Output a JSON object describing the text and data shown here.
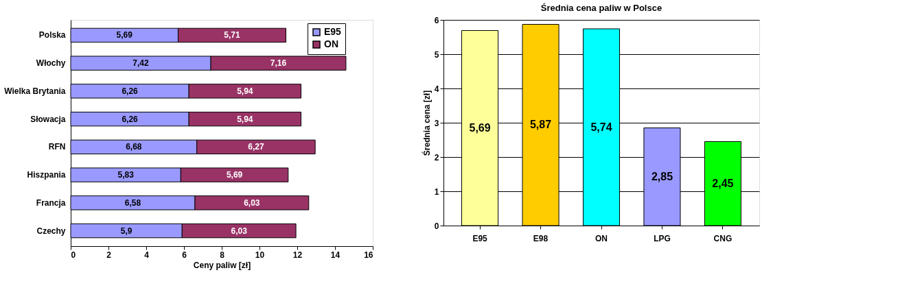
{
  "chart_data": [
    {
      "type": "bar",
      "orientation": "horizontal",
      "stacked": true,
      "xlabel": "Ceny paliw  [zł]",
      "categories": [
        "Polska",
        "Włochy",
        "Wielka Brytania",
        "Słowacja",
        "RFN",
        "Hiszpania",
        "Francja",
        "Czechy"
      ],
      "series": [
        {
          "name": "E95",
          "color": "#9999ff",
          "values": [
            5.69,
            7.42,
            6.26,
            6.26,
            6.68,
            5.83,
            6.58,
            5.9
          ],
          "value_labels": [
            "5,69",
            "7,42",
            "6,26",
            "6,26",
            "6,68",
            "5,83",
            "6,58",
            "5,9"
          ]
        },
        {
          "name": "ON",
          "color": "#993366",
          "values": [
            5.71,
            7.16,
            5.94,
            5.94,
            6.27,
            5.69,
            6.03,
            6.03
          ],
          "value_labels": [
            "5,71",
            "7,16",
            "5,94",
            "5,94",
            "6,27",
            "5,69",
            "6,03",
            "6,03"
          ]
        }
      ],
      "xlim": [
        0,
        16
      ],
      "xticks": [
        0,
        2,
        4,
        6,
        8,
        10,
        12,
        14,
        16
      ],
      "grid": false,
      "legend": "top right"
    },
    {
      "type": "bar",
      "title": "Średnia cena paliw w Polsce",
      "ylabel": "Średnia cena [zł]",
      "categories": [
        "E95",
        "E98",
        "ON",
        "LPG",
        "CNG"
      ],
      "values": [
        5.69,
        5.87,
        5.74,
        2.85,
        2.45
      ],
      "colors": [
        "#ffff99",
        "#ffcc00",
        "#00ffff",
        "#9999ff",
        "#00ff00"
      ],
      "value_labels": [
        "5,69",
        "5,87",
        "5,74",
        "2,85",
        "2,45"
      ],
      "ylim": [
        0,
        6
      ],
      "yticks": [
        0,
        1,
        2,
        3,
        4,
        5,
        6
      ],
      "grid": "y",
      "legend": false
    }
  ]
}
